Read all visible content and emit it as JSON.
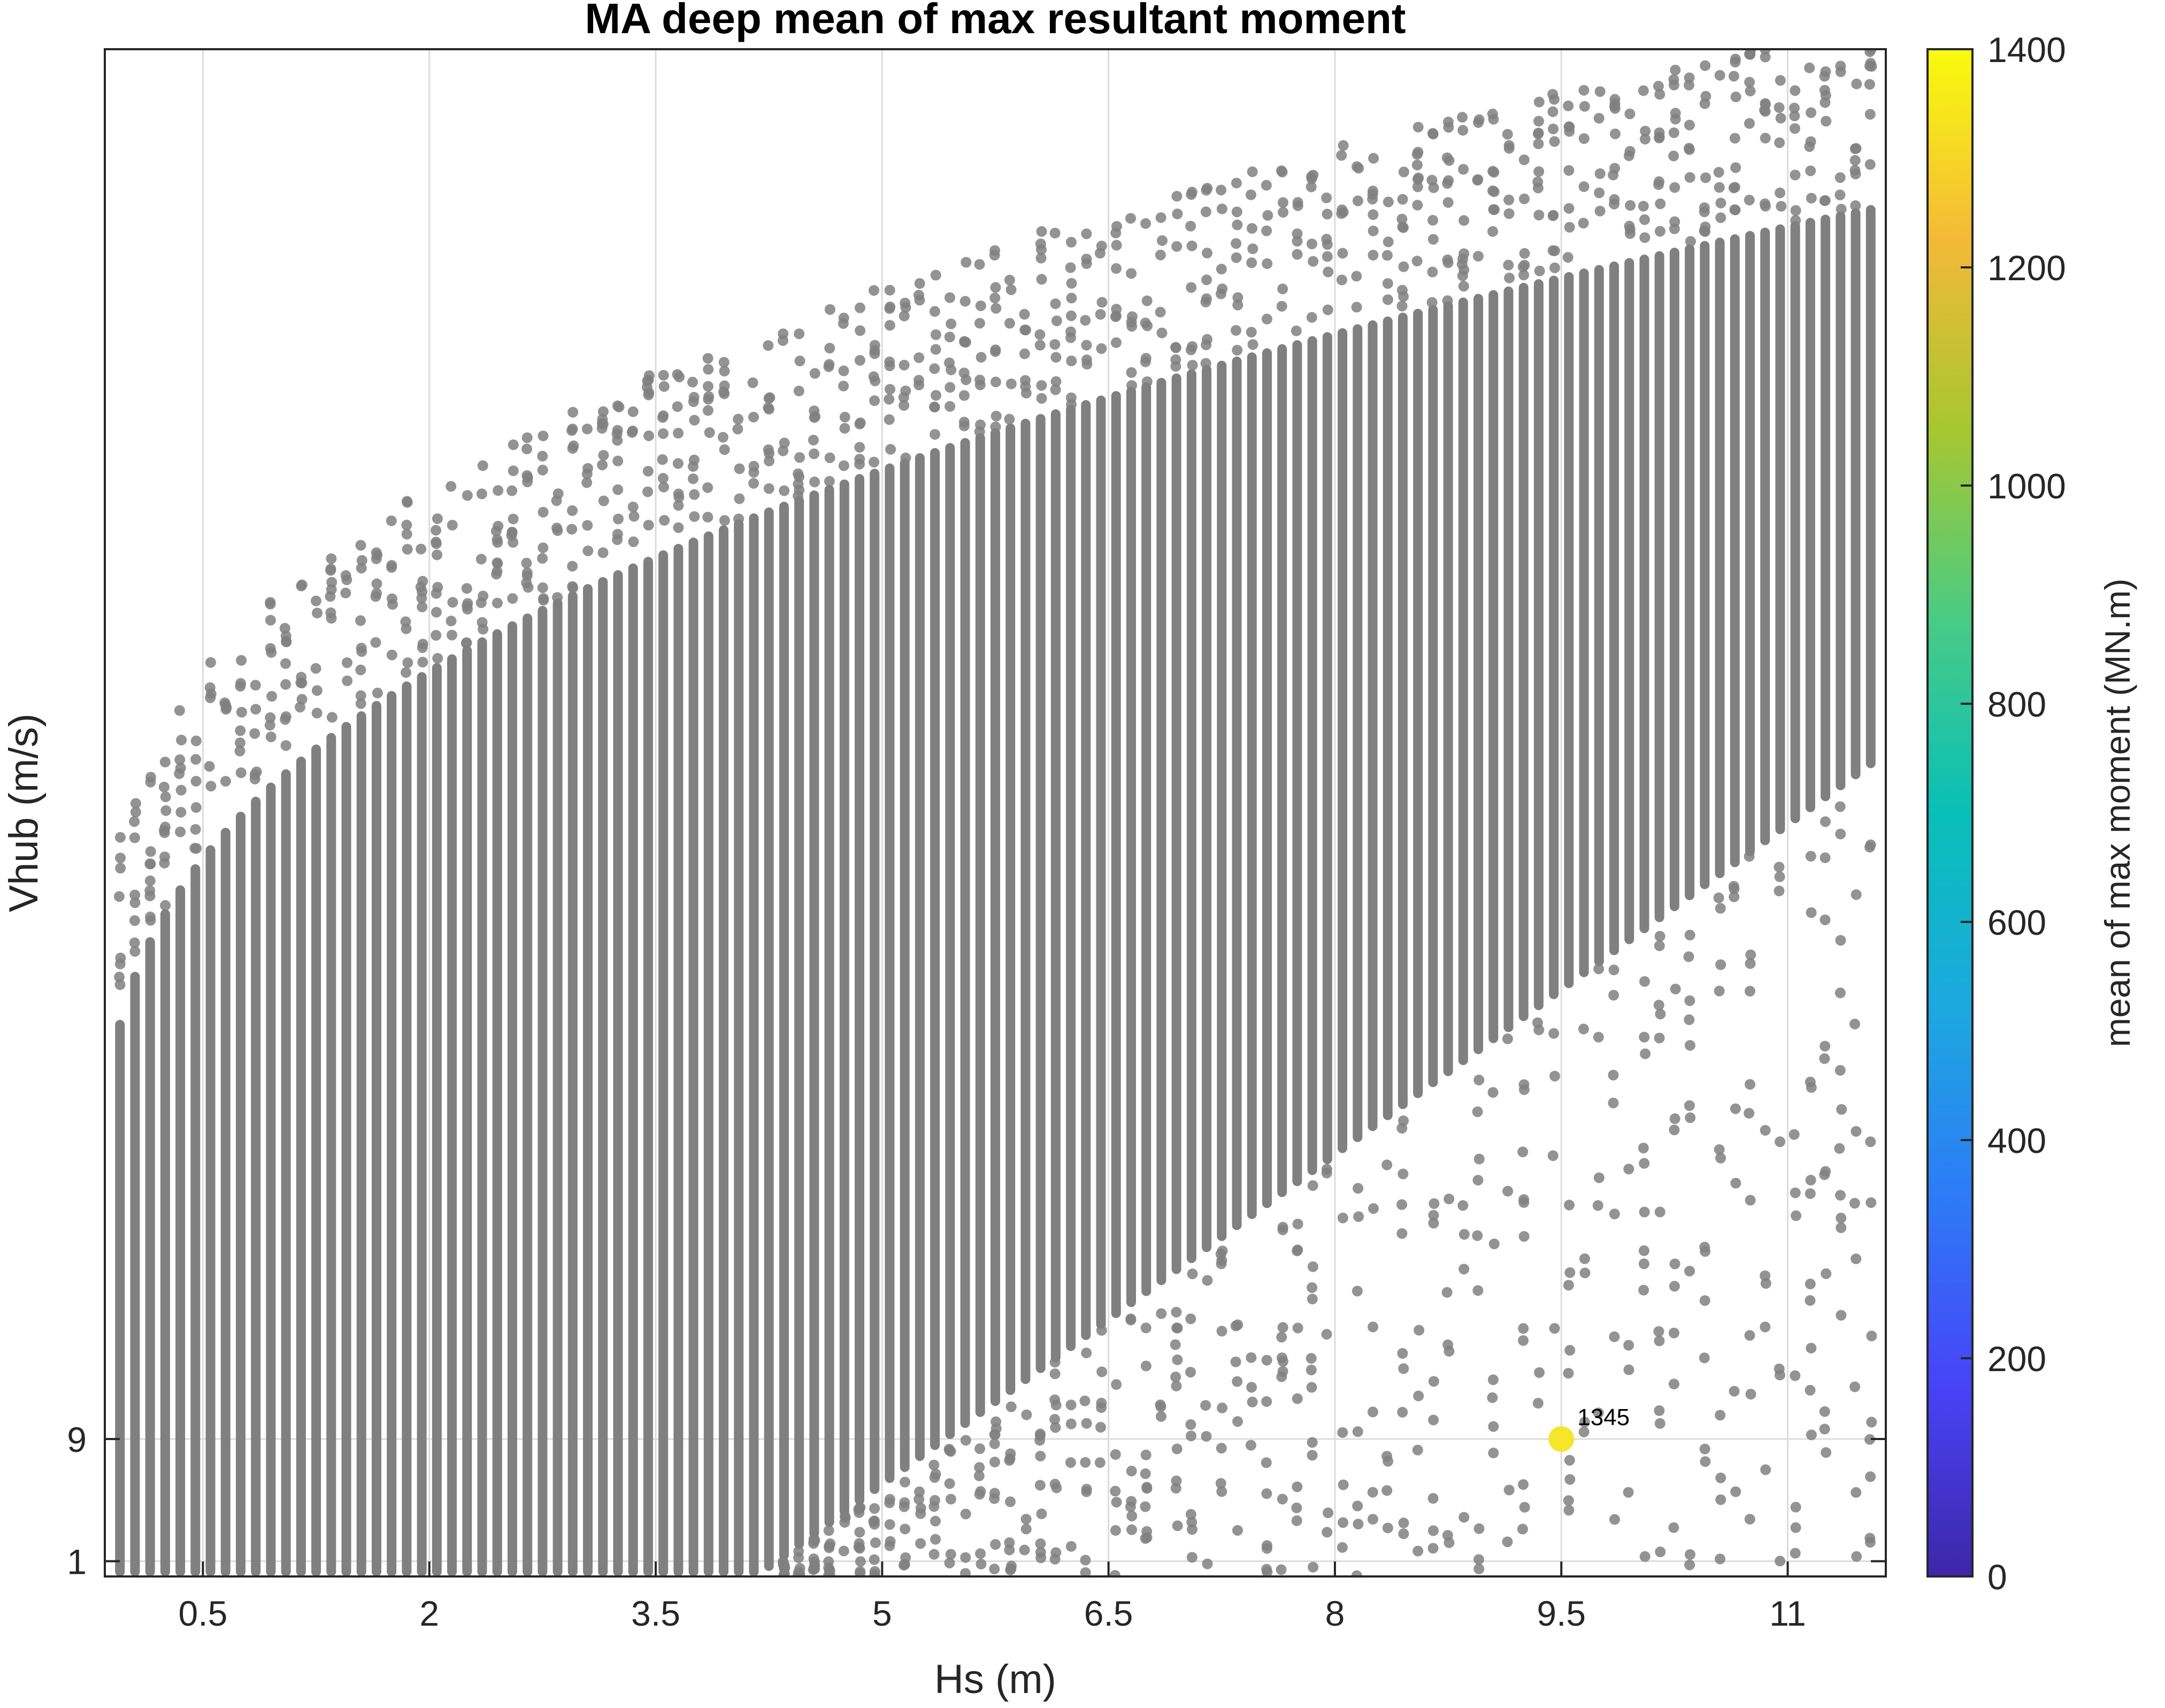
{
  "chart_data": {
    "type": "scatter",
    "title": "MA deep mean of max resultant moment",
    "xlabel": "Hs (m)",
    "ylabel": "Vhub (m/s)",
    "xlim": [
      -0.15,
      11.65
    ],
    "ylim": [
      0.0,
      100.0
    ],
    "x_ticks": [
      "0.5",
      "2",
      "3.5",
      "5",
      "6.5",
      "8",
      "9.5",
      "11"
    ],
    "x_tick_values": [
      0.5,
      2,
      3.5,
      5,
      6.5,
      8,
      9.5,
      11
    ],
    "y_ticks": [
      "1",
      "9"
    ],
    "y_tick_values": [
      1,
      9
    ],
    "grid": true,
    "colorbar": {
      "label": "mean of max moment (MN.m)",
      "range": [
        0,
        1400
      ],
      "ticks": [
        "0",
        "200",
        "400",
        "600",
        "800",
        "1000",
        "1200",
        "1400"
      ],
      "tick_values": [
        0,
        200,
        400,
        600,
        800,
        1000,
        1200,
        1400
      ],
      "colormap": "parula"
    },
    "background_points_color": "#808080",
    "highlight": {
      "x": 9.5,
      "y": 9,
      "value": 1345,
      "label": "1345",
      "color": "#f5e62a"
    }
  }
}
